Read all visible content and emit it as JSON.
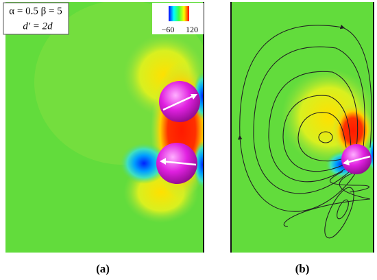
{
  "panels": {
    "a": {
      "parameters": "α = 0.5 β = 5",
      "spacing": "d' = 2d",
      "caption": "(a)"
    },
    "b": {
      "caption": "(b)"
    }
  },
  "colorbar": {
    "min_label": "−60",
    "max_label": "120"
  }
}
